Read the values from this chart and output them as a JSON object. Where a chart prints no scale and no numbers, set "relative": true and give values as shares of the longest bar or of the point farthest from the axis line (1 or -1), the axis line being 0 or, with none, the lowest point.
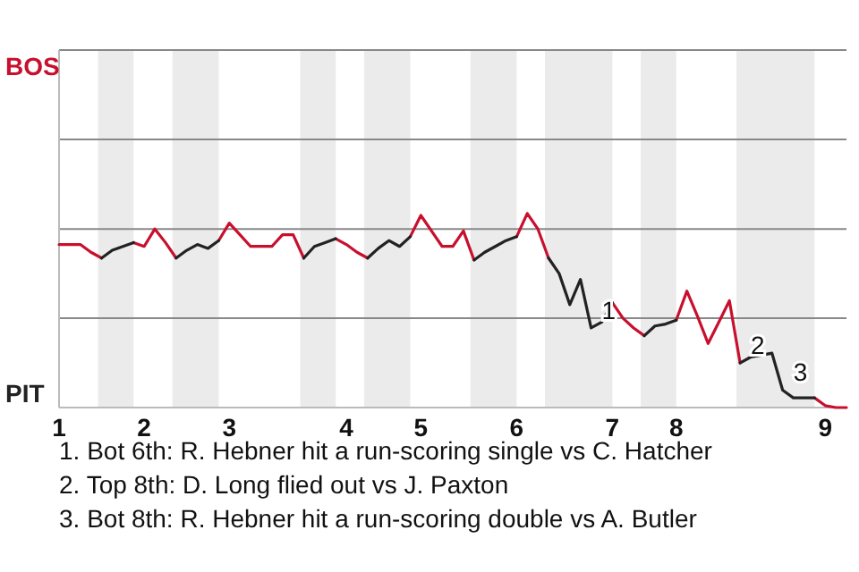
{
  "chart_data": {
    "type": "line",
    "relative": true,
    "categories": [
      "1",
      null,
      null,
      null,
      null,
      null,
      null,
      null,
      "2",
      null,
      null,
      null,
      null,
      null,
      null,
      null,
      "3",
      null,
      null,
      null,
      null,
      null,
      null,
      null,
      null,
      null,
      null,
      "4",
      null,
      null,
      null,
      null,
      null,
      null,
      "5",
      null,
      null,
      null,
      null,
      null,
      null,
      null,
      null,
      "6",
      null,
      null,
      null,
      null,
      null,
      null,
      null,
      null,
      "7",
      null,
      null,
      null,
      null,
      null,
      "8",
      null,
      null,
      null,
      null,
      null,
      null,
      null,
      null,
      null,
      null,
      null,
      null,
      null,
      "9",
      null,
      null
    ],
    "line_style": "solid",
    "ref_lines": [
      {
        "axis": "y",
        "value": 0.92,
        "color": "#888888"
      },
      {
        "axis": "y",
        "value": 0.46,
        "color": "#888888"
      }
    ],
    "series": [
      {
        "color": "#c8102e",
        "values": [
          0.84,
          0.84,
          0.84,
          0.8,
          0.77,
          null,
          null,
          0.85,
          0.83,
          0.92,
          0.85,
          0.77,
          null,
          null,
          null,
          0.86,
          0.95,
          0.89,
          0.83,
          0.83,
          0.83,
          0.89,
          0.89,
          0.77,
          null,
          null,
          0.87,
          0.84,
          0.8,
          0.77,
          null,
          null,
          null,
          0.88,
          0.99,
          0.91,
          0.83,
          0.83,
          0.91,
          0.76,
          null,
          null,
          null,
          0.88,
          1,
          0.92,
          0.77,
          null,
          null,
          null,
          null,
          null,
          0.54,
          0.46,
          0.41,
          0.37,
          null,
          null,
          0.45,
          0.6,
          0.47,
          0.33,
          0.44,
          0.55,
          0.23,
          null,
          null,
          null,
          null,
          null,
          null,
          0.05,
          0.01,
          0,
          0
        ]
      },
      {
        "color": "#222222",
        "values": [
          null,
          null,
          null,
          null,
          0.77,
          0.81,
          0.83,
          0.85,
          null,
          null,
          null,
          0.77,
          0.81,
          0.84,
          0.82,
          0.86,
          null,
          null,
          null,
          null,
          null,
          null,
          null,
          0.77,
          0.83,
          0.85,
          0.87,
          null,
          null,
          0.77,
          0.82,
          0.86,
          0.83,
          0.88,
          null,
          null,
          null,
          null,
          null,
          0.76,
          0.8,
          0.83,
          0.86,
          0.88,
          null,
          null,
          0.77,
          0.69,
          0.53,
          0.66,
          0.41,
          0.44,
          0.54,
          null,
          null,
          0.37,
          0.42,
          0.43,
          0.45,
          null,
          null,
          null,
          null,
          null,
          0.23,
          0.26,
          0.27,
          0.28,
          0.09,
          0.05,
          0.05,
          0.05,
          null,
          null,
          null
        ]
      }
    ],
    "annotations": [
      {
        "text": "1",
        "y": 0.41
      },
      {
        "text": "2",
        "y": 0.23
      },
      {
        "text": "3",
        "y": 0.09
      },
      "BOS",
      "PIT",
      "1. Bot 6th: R. Hebner hit a run-scoring single vs C. Hatcher",
      "2. Top 8th: D. Long flied out vs J. Paxton",
      "3. Bot 8th: R. Hebner hit a run-scoring double vs A. Butler"
    ]
  }
}
